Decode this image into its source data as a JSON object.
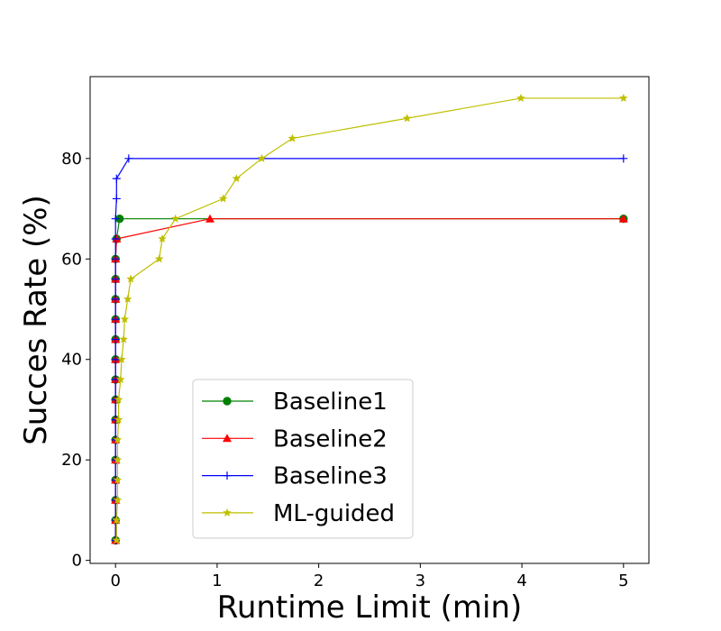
{
  "chart_data": {
    "type": "line",
    "title": "",
    "xlabel": "Runtime Limit (min)",
    "ylabel": "Succes Rate (%)",
    "xlim": [
      -0.25,
      5.25
    ],
    "ylim": [
      -0.6,
      96.3
    ],
    "xticks": [
      0,
      1,
      2,
      3,
      4,
      5
    ],
    "yticks": [
      0,
      20,
      40,
      60,
      80
    ],
    "grid": false,
    "legend_position": "lower center",
    "series": [
      {
        "name": "Baseline1",
        "color": "#008000",
        "marker": "circle",
        "points": [
          [
            0.0,
            4
          ],
          [
            0.0,
            8
          ],
          [
            0.0,
            12
          ],
          [
            0.0,
            16
          ],
          [
            0.0,
            20
          ],
          [
            0.0,
            24
          ],
          [
            0.0,
            28
          ],
          [
            0.0,
            32
          ],
          [
            0.0,
            36
          ],
          [
            0.0,
            40
          ],
          [
            0.0,
            44
          ],
          [
            0.0,
            48
          ],
          [
            0.0,
            52
          ],
          [
            0.0,
            56
          ],
          [
            0.0,
            60
          ],
          [
            0.01,
            64
          ],
          [
            0.04,
            68
          ],
          [
            5.0,
            68
          ]
        ]
      },
      {
        "name": "Baseline2",
        "color": "#ff0000",
        "marker": "triangle",
        "points": [
          [
            0.0,
            4
          ],
          [
            0.0,
            8
          ],
          [
            0.0,
            12
          ],
          [
            0.0,
            16
          ],
          [
            0.0,
            20
          ],
          [
            0.0,
            24
          ],
          [
            0.0,
            28
          ],
          [
            0.0,
            32
          ],
          [
            0.0,
            36
          ],
          [
            0.0,
            40
          ],
          [
            0.0,
            44
          ],
          [
            0.0,
            48
          ],
          [
            0.0,
            52
          ],
          [
            0.0,
            56
          ],
          [
            0.0,
            60
          ],
          [
            0.01,
            64
          ],
          [
            0.93,
            68
          ],
          [
            5.0,
            68
          ]
        ]
      },
      {
        "name": "Baseline3",
        "color": "#0000ff",
        "marker": "plus",
        "points": [
          [
            0.0,
            4
          ],
          [
            0.0,
            8
          ],
          [
            0.0,
            12
          ],
          [
            0.0,
            16
          ],
          [
            0.0,
            20
          ],
          [
            0.0,
            24
          ],
          [
            0.0,
            28
          ],
          [
            0.0,
            32
          ],
          [
            0.0,
            36
          ],
          [
            0.0,
            40
          ],
          [
            0.0,
            44
          ],
          [
            0.0,
            48
          ],
          [
            0.0,
            52
          ],
          [
            0.0,
            56
          ],
          [
            0.0,
            60
          ],
          [
            0.0,
            64
          ],
          [
            0.0,
            68
          ],
          [
            0.01,
            72
          ],
          [
            0.01,
            76
          ],
          [
            0.13,
            80
          ],
          [
            5.0,
            80
          ]
        ]
      },
      {
        "name": "ML-guided",
        "color": "#bfbf00",
        "marker": "star",
        "points": [
          [
            0.01,
            4
          ],
          [
            0.01,
            8
          ],
          [
            0.02,
            12
          ],
          [
            0.02,
            16
          ],
          [
            0.02,
            20
          ],
          [
            0.02,
            24
          ],
          [
            0.03,
            28
          ],
          [
            0.03,
            32
          ],
          [
            0.05,
            36
          ],
          [
            0.06,
            40
          ],
          [
            0.08,
            44
          ],
          [
            0.09,
            48
          ],
          [
            0.12,
            52
          ],
          [
            0.15,
            56
          ],
          [
            0.43,
            60
          ],
          [
            0.46,
            64
          ],
          [
            0.59,
            68
          ],
          [
            1.06,
            72
          ],
          [
            1.19,
            76
          ],
          [
            1.44,
            80
          ],
          [
            1.74,
            84
          ],
          [
            2.87,
            88
          ],
          [
            3.99,
            92
          ],
          [
            5.0,
            92
          ]
        ]
      }
    ]
  }
}
